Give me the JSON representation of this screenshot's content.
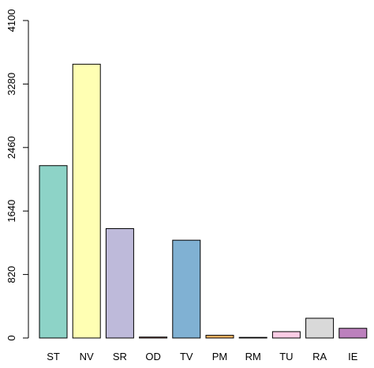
{
  "chart_data": {
    "type": "bar",
    "categories": [
      "ST",
      "NV",
      "SR",
      "OD",
      "TV",
      "PM",
      "RM",
      "TU",
      "RA",
      "IE"
    ],
    "values": [
      2226,
      3536,
      1413,
      12,
      1263,
      35,
      8,
      82,
      255,
      125
    ],
    "colors": [
      "#8DD3C7",
      "#FFFFB3",
      "#BEBADA",
      "#FB8072",
      "#80B1D3",
      "#FDB462",
      "#B3DE69",
      "#FCCDE5",
      "#D9D9D9",
      "#BC80BD"
    ],
    "yticks": [
      0,
      820,
      1640,
      2460,
      3280,
      4100
    ],
    "ylim": [
      0,
      4100
    ],
    "title": "",
    "xlabel": "",
    "ylabel": "",
    "grid": false,
    "legend": "none"
  }
}
